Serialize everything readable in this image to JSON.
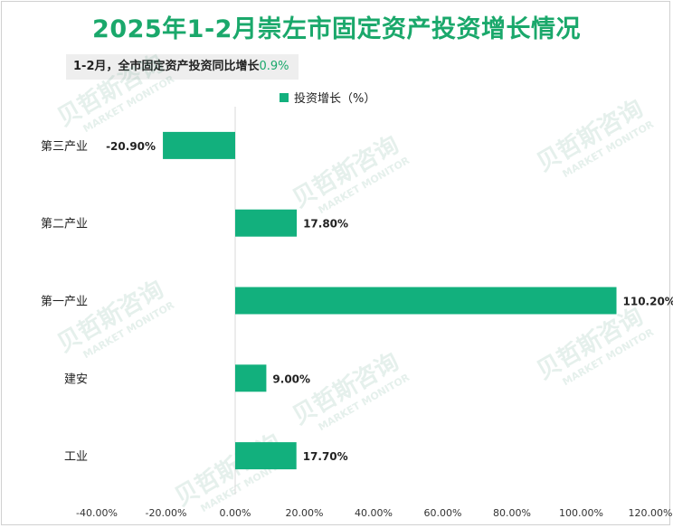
{
  "title": "2025年1-2月崇左市固定资产投资增长情况",
  "subtitle": {
    "text": "1-2月，全市固定资产投资同比增长",
    "value": "0.9%"
  },
  "chart_data": {
    "type": "bar",
    "orientation": "horizontal",
    "title": "2025年1-2月崇左市固定资产投资增长情况",
    "categories": [
      "第三产业",
      "第二产业",
      "第一产业",
      "建安",
      "工业"
    ],
    "series": [
      {
        "name": "投资增长（%）",
        "values": [
          -20.9,
          17.8,
          110.2,
          9.0,
          17.7
        ],
        "labels": [
          "-20.90%",
          "17.80%",
          "110.20%",
          "9.00%",
          "17.70%"
        ]
      }
    ],
    "xlim": [
      -40,
      120
    ],
    "xticks": [
      -40,
      -20,
      0,
      20,
      40,
      60,
      80,
      100,
      120
    ],
    "xtick_labels": [
      "-40.00%",
      "-20.00%",
      "0.00%",
      "20.00%",
      "40.00%",
      "60.00%",
      "80.00%",
      "100.00%",
      "120.00%"
    ],
    "legend_position": "top-center",
    "grid": false,
    "bar_color": "#12b07d"
  },
  "watermark": {
    "text_cn": "贝哲斯咨询",
    "text_en": "MARKET MONITOR"
  }
}
